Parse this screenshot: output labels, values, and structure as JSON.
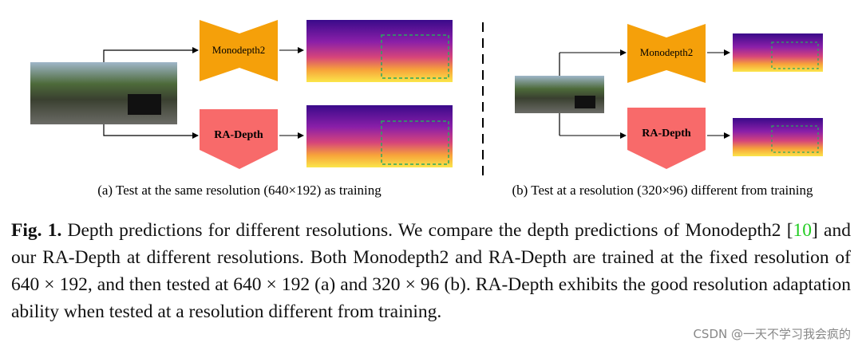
{
  "panels": [
    {
      "nets": [
        "Monodepth2",
        "RA-Depth"
      ],
      "caption": "(a) Test at the same resolution (640×192) as training"
    },
    {
      "nets": [
        "Monodepth2",
        "RA-Depth"
      ],
      "caption": "(b) Test at a resolution (320×96) different from training"
    }
  ],
  "figure_caption": {
    "label": "Fig. 1.",
    "text_before": "Depth predictions for different resolutions. We compare the depth predictions of Monodepth2 [",
    "citation": "10",
    "text_after": "] and our RA-Depth at different resolutions. Both Monodepth2 and RA-Depth are trained at the fixed resolution of 640 × 192, and then tested at 640 × 192 (a) and 320 × 96 (b). RA-Depth exhibits the good resolution adaptation ability when tested at a resolution different from training."
  },
  "watermark": "CSDN @一天不学习我会疯的"
}
